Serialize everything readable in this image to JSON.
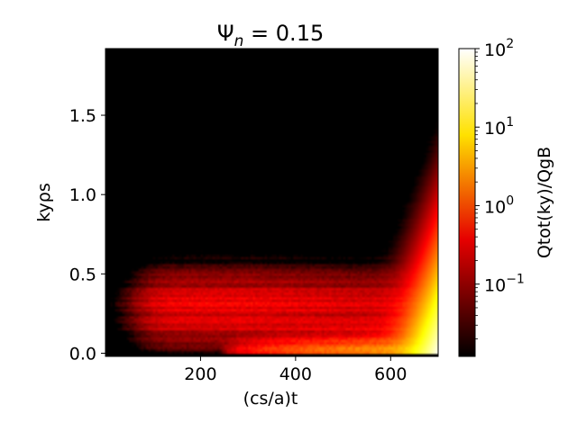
{
  "chart_data": {
    "type": "heatmap",
    "title": "Ψn = 0.15",
    "title_main": "Ψ",
    "title_sub": "n",
    "title_rest": " = 0.15",
    "xlabel": "(cs/a)t",
    "ylabel": "kyρs",
    "colorbar_label": "Qtot(ky)/QgB",
    "colormap": "hot",
    "color_scale": "log",
    "color_range": [
      0.012,
      100
    ],
    "xlim": [
      0,
      700
    ],
    "ylim": [
      -0.02,
      1.92
    ],
    "x_ticks": [
      {
        "value": 200,
        "label": "200"
      },
      {
        "value": 400,
        "label": "400"
      },
      {
        "value": 600,
        "label": "600"
      }
    ],
    "y_ticks": [
      {
        "value": 0.0,
        "label": "0.0"
      },
      {
        "value": 0.5,
        "label": "0.5"
      },
      {
        "value": 1.0,
        "label": "1.0"
      },
      {
        "value": 1.5,
        "label": "1.5"
      }
    ],
    "colorbar_ticks": [
      {
        "value": 100,
        "base": "10",
        "exp": "2"
      },
      {
        "value": 10,
        "base": "10",
        "exp": "1"
      },
      {
        "value": 1,
        "base": "10",
        "exp": "0"
      },
      {
        "value": 0.1,
        "base": "10",
        "exp": "−1"
      }
    ],
    "grid": false
  }
}
